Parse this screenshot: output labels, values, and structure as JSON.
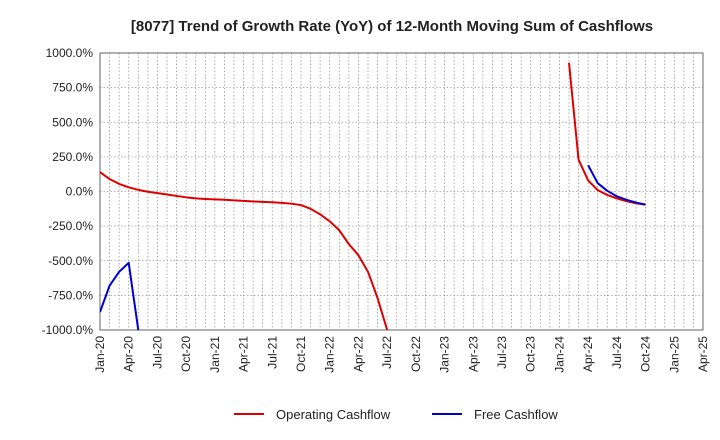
{
  "chart_data": {
    "type": "line",
    "title": "[8077]  Trend of Growth Rate (YoY) of 12-Month Moving Sum of Cashflows",
    "xlabel": "",
    "ylabel": "",
    "ylim": [
      -1000,
      1000
    ],
    "y_ticks": [
      1000,
      750,
      500,
      250,
      0,
      -250,
      -500,
      -750,
      -1000
    ],
    "y_tick_labels": [
      "1000.0%",
      "750.0%",
      "500.0%",
      "250.0%",
      "0.0%",
      "-250.0%",
      "-500.0%",
      "-750.0%",
      "-1000.0%"
    ],
    "x_tick_labels": [
      "Jan-20",
      "Apr-20",
      "Jul-20",
      "Oct-20",
      "Jan-21",
      "Apr-21",
      "Jul-21",
      "Oct-21",
      "Jan-22",
      "Apr-22",
      "Jul-22",
      "Oct-22",
      "Jan-23",
      "Apr-23",
      "Jul-23",
      "Oct-23",
      "Jan-24",
      "Apr-24",
      "Jul-24",
      "Oct-24",
      "Jan-25",
      "Apr-25"
    ],
    "grid": true,
    "legend_position": "bottom",
    "series": [
      {
        "name": "Operating Cashflow",
        "color": "#dd0000",
        "segments": [
          [
            [
              "Jan-20",
              140
            ],
            [
              "Feb-20",
              90
            ],
            [
              "Mar-20",
              55
            ],
            [
              "Apr-20",
              30
            ],
            [
              "May-20",
              12
            ],
            [
              "Jun-20",
              -2
            ],
            [
              "Jul-20",
              -12
            ],
            [
              "Aug-20",
              -22
            ],
            [
              "Sep-20",
              -32
            ],
            [
              "Oct-20",
              -42
            ],
            [
              "Nov-20",
              -50
            ],
            [
              "Dec-20",
              -54
            ],
            [
              "Jan-21",
              -57
            ],
            [
              "Feb-21",
              -60
            ],
            [
              "Mar-21",
              -64
            ],
            [
              "Apr-21",
              -68
            ],
            [
              "May-21",
              -72
            ],
            [
              "Jun-21",
              -75
            ],
            [
              "Jul-21",
              -78
            ],
            [
              "Aug-21",
              -82
            ],
            [
              "Sep-21",
              -88
            ],
            [
              "Oct-21",
              -98
            ],
            [
              "Nov-21",
              -125
            ],
            [
              "Dec-21",
              -165
            ],
            [
              "Jan-22",
              -215
            ],
            [
              "Feb-22",
              -280
            ],
            [
              "Mar-22",
              -380
            ],
            [
              "Apr-22",
              -460
            ],
            [
              "May-22",
              -580
            ],
            [
              "Jun-22",
              -770
            ],
            [
              "Jul-22",
              -1000
            ]
          ],
          [
            [
              "Feb-24",
              930
            ],
            [
              "Mar-24",
              230
            ],
            [
              "Apr-24",
              80
            ],
            [
              "May-24",
              10
            ],
            [
              "Jun-24",
              -25
            ],
            [
              "Jul-24",
              -50
            ],
            [
              "Aug-24",
              -70
            ],
            [
              "Sep-24",
              -85
            ],
            [
              "Oct-24",
              -95
            ]
          ]
        ]
      },
      {
        "name": "Free Cashflow",
        "color": "#0000cc",
        "segments": [
          [
            [
              "Jan-20",
              -870
            ],
            [
              "Feb-20",
              -680
            ],
            [
              "Mar-20",
              -580
            ],
            [
              "Apr-20",
              -515
            ],
            [
              "May-20",
              -1000
            ]
          ],
          [
            [
              "Apr-24",
              190
            ],
            [
              "May-24",
              60
            ],
            [
              "Jun-24",
              5
            ],
            [
              "Jul-24",
              -35
            ],
            [
              "Aug-24",
              -60
            ],
            [
              "Sep-24",
              -80
            ],
            [
              "Oct-24",
              -95
            ]
          ]
        ]
      }
    ]
  }
}
